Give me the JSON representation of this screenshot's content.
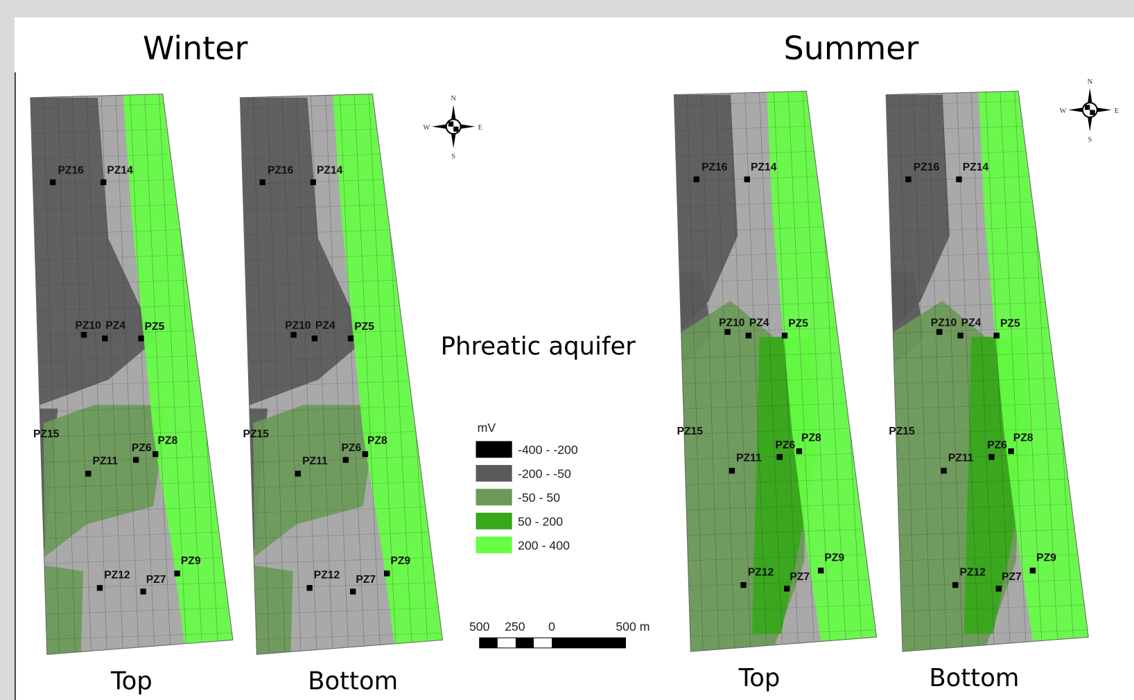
{
  "titles": {
    "winter": "Winter",
    "summer": "Summer"
  },
  "center_label": "Phreatic aquifer",
  "panels": [
    {
      "label": "Top"
    },
    {
      "label": "Bottom"
    },
    {
      "label": "Top"
    },
    {
      "label": "Bottom"
    }
  ],
  "piezometers": [
    "PZ16",
    "PZ14",
    "PZ10",
    "PZ4",
    "PZ5",
    "PZ15",
    "PZ6",
    "PZ8",
    "PZ11",
    "PZ12",
    "PZ7",
    "PZ9"
  ],
  "legend": {
    "unit": "mV",
    "classes": [
      {
        "label": "-400 - -200",
        "color": "#000000"
      },
      {
        "label": "-200 - -50",
        "color": "#5a5a5a"
      },
      {
        "label": "-50 - 50",
        "color": "#6b9a58"
      },
      {
        "label": "50 - 200",
        "color": "#36a81a"
      },
      {
        "label": "200 - 400",
        "color": "#66ff44"
      }
    ]
  },
  "scale_bar": {
    "labels": [
      "500",
      "250",
      "0",
      "500 m"
    ]
  },
  "compass": {
    "n": "N",
    "s": "S",
    "e": "E",
    "w": "W"
  }
}
